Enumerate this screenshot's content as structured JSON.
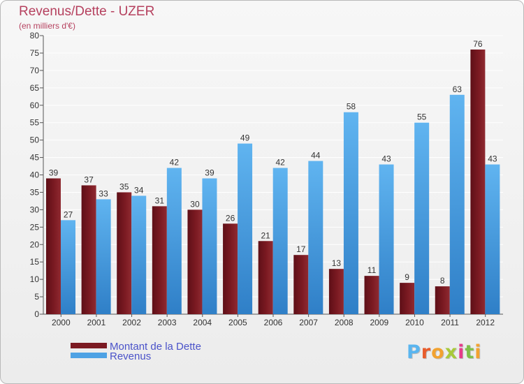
{
  "title": "Revenus/Dette - UZER",
  "subtitle": "(en milliers d'€)",
  "logo": {
    "text": "Proxiti",
    "letter_colors": [
      "#5ab5ef",
      "#e85c2c",
      "#f2a230",
      "#a8c93a",
      "#e63c8a",
      "#7fc04a",
      "#f2a230"
    ]
  },
  "colors": {
    "dette": "#7b1a22",
    "revenus": "#4ea2e4",
    "axis": "#555555",
    "grid": "#ffffff"
  },
  "chart_data": {
    "type": "bar",
    "title": "Revenus/Dette - UZER",
    "subtitle": "(en milliers d'€)",
    "categories": [
      "2000",
      "2001",
      "2002",
      "2003",
      "2004",
      "2005",
      "2006",
      "2007",
      "2008",
      "2009",
      "2010",
      "2011",
      "2012"
    ],
    "series": [
      {
        "name": "Montant de la Dette",
        "color": "#7b1a22",
        "values": [
          39,
          37,
          35,
          31,
          30,
          26,
          21,
          17,
          13,
          11,
          9,
          8,
          76
        ]
      },
      {
        "name": "Revenus",
        "color": "#4ea2e4",
        "values": [
          27,
          33,
          34,
          42,
          39,
          49,
          42,
          44,
          58,
          43,
          55,
          63,
          43
        ]
      }
    ],
    "ylim": [
      0,
      80
    ],
    "yticks": [
      0,
      5,
      10,
      15,
      20,
      25,
      30,
      35,
      40,
      45,
      50,
      55,
      60,
      65,
      70,
      75,
      80
    ],
    "grid": true,
    "legend": "bottom-left"
  }
}
